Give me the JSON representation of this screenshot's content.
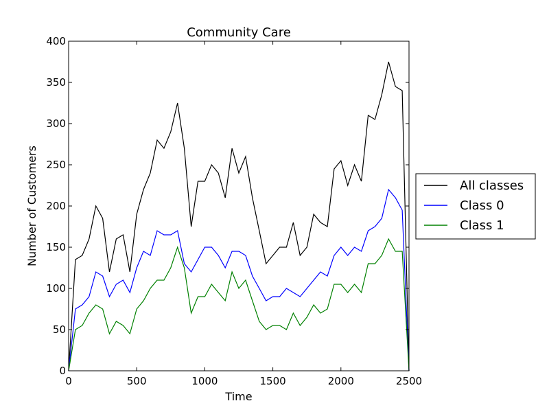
{
  "chart_data": {
    "type": "line",
    "title": "Community Care",
    "xlabel": "Time",
    "ylabel": "Number of Customers",
    "xlim": [
      0,
      2500
    ],
    "ylim": [
      0,
      400
    ],
    "xticks": [
      0,
      500,
      1000,
      1500,
      2000,
      2500
    ],
    "yticks": [
      0,
      50,
      100,
      150,
      200,
      250,
      300,
      350,
      400
    ],
    "xtick_labels": [
      "0",
      "500",
      "1000",
      "1500",
      "2000",
      "2500"
    ],
    "ytick_labels": [
      "0",
      "50",
      "100",
      "150",
      "200",
      "250",
      "300",
      "350",
      "400"
    ],
    "grid": false,
    "legend_position": "right-outside",
    "x": [
      0,
      50,
      100,
      150,
      200,
      250,
      300,
      350,
      400,
      450,
      500,
      550,
      600,
      650,
      700,
      750,
      800,
      850,
      900,
      950,
      1000,
      1050,
      1100,
      1150,
      1200,
      1250,
      1300,
      1350,
      1400,
      1450,
      1500,
      1550,
      1600,
      1650,
      1700,
      1750,
      1800,
      1850,
      1900,
      1950,
      2000,
      2050,
      2100,
      2150,
      2200,
      2250,
      2300,
      2350,
      2400,
      2450,
      2500
    ],
    "series": [
      {
        "name": "All classes",
        "color": "#000000",
        "values": [
          0,
          135,
          140,
          160,
          200,
          185,
          120,
          160,
          165,
          120,
          190,
          220,
          240,
          280,
          270,
          290,
          325,
          270,
          175,
          230,
          230,
          250,
          240,
          210,
          270,
          240,
          260,
          210,
          170,
          130,
          140,
          150,
          150,
          180,
          140,
          150,
          190,
          180,
          175,
          245,
          255,
          225,
          250,
          230,
          310,
          305,
          335,
          375,
          345,
          340,
          0
        ]
      },
      {
        "name": "Class 0",
        "color": "#0000ff",
        "values": [
          0,
          75,
          80,
          90,
          120,
          115,
          90,
          105,
          110,
          95,
          125,
          145,
          140,
          170,
          165,
          165,
          170,
          130,
          120,
          135,
          150,
          150,
          140,
          125,
          145,
          145,
          140,
          115,
          100,
          85,
          90,
          90,
          100,
          95,
          90,
          100,
          110,
          120,
          115,
          140,
          150,
          140,
          150,
          145,
          170,
          175,
          185,
          220,
          210,
          195,
          0
        ]
      },
      {
        "name": "Class 1",
        "color": "#008000",
        "values": [
          0,
          50,
          55,
          70,
          80,
          75,
          45,
          60,
          55,
          45,
          75,
          85,
          100,
          110,
          110,
          125,
          150,
          125,
          70,
          90,
          90,
          105,
          95,
          85,
          120,
          100,
          110,
          85,
          60,
          50,
          55,
          55,
          50,
          70,
          55,
          65,
          80,
          70,
          75,
          105,
          105,
          95,
          105,
          95,
          130,
          130,
          140,
          160,
          145,
          145,
          0
        ]
      }
    ]
  }
}
